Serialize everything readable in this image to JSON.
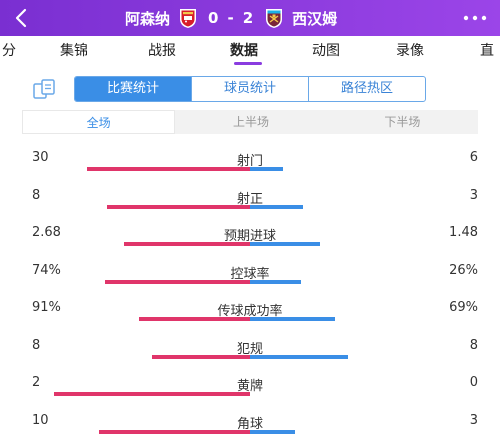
{
  "header": {
    "home_team": "阿森纳",
    "away_team": "西汉姆",
    "home_score": "0",
    "separator": "-",
    "away_score": "2",
    "back_icon": "chevron-left-icon",
    "more_icon": "more-dots-icon",
    "bg_color": "#8a3ce0"
  },
  "nav": {
    "items": [
      "分",
      "集锦",
      "战报",
      "数据",
      "动图",
      "录像",
      "直"
    ],
    "active_index": 3
  },
  "segment": {
    "items": [
      "比赛统计",
      "球员统计",
      "路径热区"
    ],
    "active_index": 0
  },
  "period": {
    "items": [
      "全场",
      "上半场",
      "下半场"
    ],
    "active_index": 0
  },
  "colors": {
    "home": "#e0356a",
    "away": "#3a8ee6",
    "accent": "#3a8ee6"
  },
  "stats": [
    {
      "label": "射门",
      "home": "30",
      "away": "6",
      "home_val": 30,
      "away_val": 6
    },
    {
      "label": "射正",
      "home": "8",
      "away": "3",
      "home_val": 8,
      "away_val": 3
    },
    {
      "label": "预期进球",
      "home": "2.68",
      "away": "1.48",
      "home_val": 2.68,
      "away_val": 1.48
    },
    {
      "label": "控球率",
      "home": "74%",
      "away": "26%",
      "home_val": 74,
      "away_val": 26
    },
    {
      "label": "传球成功率",
      "home": "91%",
      "away": "69%",
      "home_val": 91,
      "away_val": 69
    },
    {
      "label": "犯规",
      "home": "8",
      "away": "8",
      "home_val": 8,
      "away_val": 8
    },
    {
      "label": "黄牌",
      "home": "2",
      "away": "0",
      "home_val": 2,
      "away_val": 0
    },
    {
      "label": "角球",
      "home": "10",
      "away": "3",
      "home_val": 10,
      "away_val": 3
    }
  ]
}
